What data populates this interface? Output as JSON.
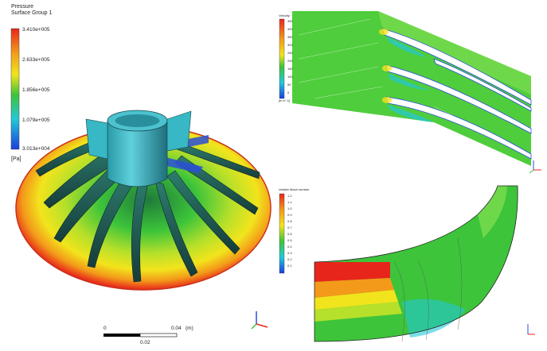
{
  "pressure_legend": {
    "title": "Pressure",
    "subtitle": "Surface Group 1",
    "unit": "[Pa]",
    "ticks": [
      "3.410e+005",
      "2.633e+005",
      "1.856e+005",
      "1.079e+005",
      "3.013e+004"
    ]
  },
  "scale_bar": {
    "left_label": "0",
    "right_label": "0.04",
    "right_unit": "(m)",
    "mid_label": "0.02"
  },
  "velocity_legend": {
    "title": "Velocity",
    "ticks": [
      "450",
      "400",
      "350",
      "300",
      "250",
      "200",
      "150",
      "100",
      "50",
      "0"
    ],
    "unit": "[m s^-1]"
  },
  "mach_legend": {
    "title": "relative Mach number",
    "ticks": [
      "1.2",
      "1.1",
      "1.0",
      "0.9",
      "0.8",
      "0.7",
      "0.6",
      "0.5",
      "0.4",
      "0.3",
      "0.2",
      "0.1"
    ]
  },
  "colors": {
    "high": "#e8251b",
    "orange": "#f39a1a",
    "yellow": "#f2e41c",
    "green": "#3dc43a",
    "cyan": "#23c8d8",
    "blue": "#1a3ee0"
  }
}
